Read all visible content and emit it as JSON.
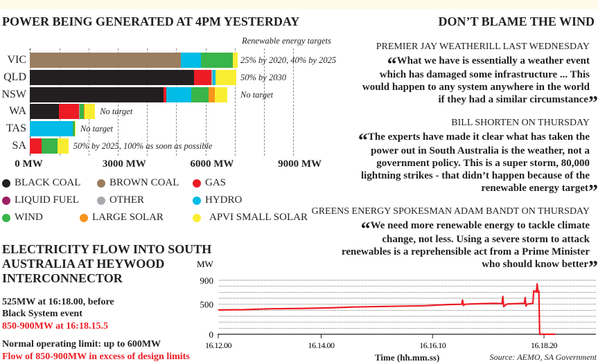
{
  "bar_title": "POWER BEING GENERATED AT 4PM YESTERDAY",
  "targets_header": "Renewable energy targets",
  "colors": {
    "black_coal": "#231f20",
    "brown_coal": "#9b7d60",
    "gas": "#ed1c24",
    "liquid_fuel": "#9e1f63",
    "other": "#a7a9ac",
    "hydro": "#00bce6",
    "wind": "#39b54a",
    "large_solar": "#f7941d",
    "apvi_small_solar": "#f9ed32",
    "line": "#ed1c24"
  },
  "legend": [
    {
      "key": "black_coal",
      "label": "BLACK COAL"
    },
    {
      "key": "brown_coal",
      "label": "BROWN COAL"
    },
    {
      "key": "gas",
      "label": "GAS"
    },
    {
      "key": "liquid_fuel",
      "label": "LIQUID FUEL"
    },
    {
      "key": "other",
      "label": "OTHER"
    },
    {
      "key": "hydro",
      "label": "HYDRO"
    },
    {
      "key": "wind",
      "label": "WIND"
    },
    {
      "key": "large_solar",
      "label": "LARGE SOLAR"
    },
    {
      "key": "apvi_small_solar",
      "label": "APVI SMALL SOLAR"
    }
  ],
  "chart_data": [
    {
      "type": "bar",
      "stacked": true,
      "orientation": "horizontal",
      "title": "POWER BEING GENERATED AT 4PM YESTERDAY",
      "xlim": [
        0,
        10000
      ],
      "x_ticks": [
        {
          "v": 0,
          "label": "0 MW"
        },
        {
          "v": 3000,
          "label": "3000 MW"
        },
        {
          "v": 6000,
          "label": "6000 MW"
        },
        {
          "v": 9000,
          "label": "9000 MW"
        }
      ],
      "grid": true,
      "categories": [
        "VIC",
        "QLD",
        "NSW",
        "WA",
        "TAS",
        "SA"
      ],
      "targets": [
        "25% by 2020, 40% by 2025",
        "50% by 2030",
        "No target",
        "No target",
        "No target",
        "50% by 2025, 100% as soon as possible"
      ],
      "series": [
        {
          "name": "black_coal",
          "values": [
            0,
            5600,
            4560,
            990,
            0,
            0
          ]
        },
        {
          "name": "brown_coal",
          "values": [
            5150,
            0,
            0,
            0,
            0,
            0
          ]
        },
        {
          "name": "gas",
          "values": [
            0,
            590,
            95,
            690,
            0,
            395
          ]
        },
        {
          "name": "liquid_fuel",
          "values": [
            0,
            0,
            0,
            0,
            0,
            0
          ]
        },
        {
          "name": "other",
          "values": [
            0,
            55,
            0,
            30,
            0,
            0
          ]
        },
        {
          "name": "hydro",
          "values": [
            690,
            100,
            850,
            0,
            1460,
            0
          ]
        },
        {
          "name": "wind",
          "values": [
            1100,
            0,
            590,
            135,
            65,
            535
          ]
        },
        {
          "name": "large_solar",
          "values": [
            0,
            0,
            215,
            25,
            0,
            0
          ]
        },
        {
          "name": "apvi_small_solar",
          "values": [
            160,
            700,
            425,
            355,
            30,
            385
          ]
        }
      ]
    },
    {
      "type": "line",
      "title": "ELECTRICITY FLOW INTO SOUTH AUSTRALIA AT HEYWOOD INTERCONNECTOR",
      "ylabel": "MW",
      "xlabel": "Time (hh.mm.ss)",
      "ylim": [
        0,
        900
      ],
      "xlim_seconds_after_16.12.00": [
        0,
        395
      ],
      "y_ticks": [
        0,
        500,
        900
      ],
      "x_ticks": [
        {
          "v": 0,
          "label": "16.12.00"
        },
        {
          "v": 120,
          "label": "16.14.00"
        },
        {
          "v": 250,
          "label": "16.16.10"
        },
        {
          "v": 380,
          "label": "16.18.20"
        }
      ],
      "points": [
        [
          0,
          405
        ],
        [
          30,
          410
        ],
        [
          61,
          425
        ],
        [
          96,
          430
        ],
        [
          130,
          440
        ],
        [
          160,
          455
        ],
        [
          200,
          465
        ],
        [
          241,
          475
        ],
        [
          268,
          495
        ],
        [
          284,
          500
        ],
        [
          285,
          570
        ],
        [
          286,
          480
        ],
        [
          288,
          500
        ],
        [
          295,
          505
        ],
        [
          322,
          515
        ],
        [
          331,
          510
        ],
        [
          332,
          630
        ],
        [
          333,
          460
        ],
        [
          336,
          500
        ],
        [
          338,
          505
        ],
        [
          357,
          515
        ],
        [
          358,
          610
        ],
        [
          359,
          470
        ],
        [
          360,
          500
        ],
        [
          367,
          515
        ],
        [
          368,
          725
        ],
        [
          370,
          715
        ],
        [
          371,
          700
        ],
        [
          372,
          840
        ],
        [
          373,
          700
        ],
        [
          374,
          720
        ],
        [
          375,
          0
        ],
        [
          393,
          0
        ]
      ]
    }
  ],
  "quotes_title": "DON’T BLAME THE WIND",
  "quotes": [
    {
      "who": "PREMIER JAY WEATHERILL LAST WEDNESDAY",
      "lines": [
        "What we have is essentially a weather event",
        "which has damaged some infrastructure ... This",
        "would happen to any system anywhere in the world",
        "if they had a similar circumstance"
      ]
    },
    {
      "who": "BILL SHORTEN ON THURSDAY",
      "lines": [
        "The experts have made it clear what has taken the",
        "power out in South Australia is the weather, not a",
        "government policy. This is a super storm, 80,000",
        "lightning strikes - that didn’t happen because of the",
        "renewable energy target"
      ]
    },
    {
      "who": "GREENS ENERGY SPOKESMAN ADAM BANDT ON THURSDAY",
      "lines": [
        "We need more renewable energy to tackle climate",
        "change, not less. Using a severe storm to attack",
        "renewables is a reprehensible act from a Prime Minister",
        "who should know better"
      ]
    }
  ],
  "flow_title_lines": [
    "ELECTRICITY FLOW INTO SOUTH",
    "AUSTRALIA AT HEYWOOD",
    "INTERCONNECTOR"
  ],
  "flow_notes": {
    "n1": "525MW at 16:18.00, before",
    "n2": "Black System event",
    "n3": "850-900MW at 16:18.15.5",
    "n4": "Normal operating limit: up to 600MW",
    "n5": "Flow of 850-900MW in excess of design limits"
  },
  "source": "Source: AEMO, SA Government"
}
